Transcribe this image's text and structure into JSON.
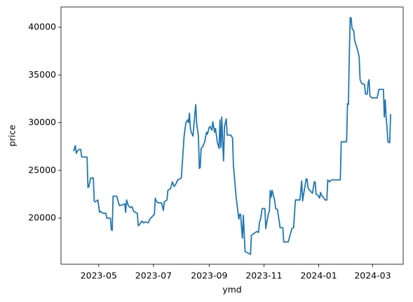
{
  "chart_data": {
    "type": "line",
    "x_label": "ymd",
    "y_label": "price",
    "x": [
      19450,
      19452,
      19453,
      19454,
      19456,
      19458,
      19459,
      19465,
      19466,
      19467,
      19469,
      19472,
      19473,
      19474,
      19477,
      19479,
      19480,
      19483,
      19486,
      19487,
      19491,
      19492,
      19493,
      19494,
      19498,
      19501,
      19505,
      19507,
      19508,
      19509,
      19511,
      19513,
      19515,
      19517,
      19519,
      19521,
      19522,
      19524,
      19526,
      19528,
      19530,
      19533,
      19535,
      19538,
      19540,
      19541,
      19542,
      19544,
      19548,
      19550,
      19551,
      19554,
      19555,
      19558,
      19560,
      19562,
      19564,
      19566,
      19570,
      19573,
      19575,
      19577,
      19578,
      19579,
      19580,
      19581,
      19583,
      19584,
      19586,
      19587,
      19589,
      19590,
      19591,
      19592,
      19594,
      19596,
      19598,
      19599,
      19601,
      19602,
      19604,
      19605,
      19607,
      19608,
      19610,
      19612,
      19613,
      19614,
      19615,
      19616,
      19617,
      19618,
      19620,
      19621,
      19625,
      19627,
      19628,
      19631,
      19634,
      19635,
      19636,
      19637,
      19638,
      19639,
      19641,
      19643,
      19645,
      19647,
      19648,
      19651,
      19654,
      19656,
      19657,
      19658,
      19660,
      19663,
      19664,
      19665,
      19667,
      19668,
      19669,
      19670,
      19671,
      19673,
      19674,
      19675,
      19677,
      19680,
      19683,
      19684,
      19689,
      19691,
      19693,
      19695,
      19697,
      19699,
      19702,
      19704,
      19705,
      19707,
      19709,
      19710,
      19711,
      19712,
      19715,
      19716,
      19718,
      19719,
      19720,
      19722,
      19724,
      19725,
      19726,
      19728,
      19730,
      19732,
      19733,
      19735,
      19737,
      19747,
      19748,
      19754,
      19755,
      19756,
      19757,
      19758,
      19759,
      19760,
      19762,
      19763,
      19766,
      19768,
      19769,
      19771,
      19774,
      19775,
      19777,
      19778,
      19779,
      19780,
      19782,
      19788,
      19790,
      19795,
      19796,
      19797,
      19798,
      19799,
      19800,
      19802,
      19803
    ],
    "series": [
      {
        "color": "#1f77b4",
        "values": [
          27000,
          27600,
          26800,
          27000,
          27200,
          27200,
          26400,
          26400,
          23200,
          23300,
          24200,
          24200,
          21800,
          21700,
          21900,
          20600,
          20700,
          20500,
          20500,
          20000,
          20000,
          18800,
          18700,
          22300,
          22300,
          21300,
          21400,
          21500,
          20600,
          21900,
          21300,
          21100,
          21200,
          20700,
          20600,
          20500,
          19200,
          19400,
          19700,
          19500,
          19600,
          19500,
          19900,
          20200,
          20400,
          22100,
          21800,
          21600,
          21600,
          20800,
          21700,
          21900,
          22900,
          23100,
          23800,
          23300,
          23600,
          24000,
          24200,
          28500,
          30000,
          30300,
          30000,
          31000,
          29500,
          29000,
          28600,
          29800,
          31900,
          30000,
          28600,
          25200,
          25300,
          27300,
          27500,
          28000,
          29000,
          28800,
          29500,
          29600,
          29200,
          30100,
          29000,
          29400,
          28000,
          27300,
          30300,
          27400,
          30600,
          28000,
          26000,
          29600,
          30400,
          28700,
          28700,
          28400,
          25500,
          22200,
          19900,
          20400,
          20400,
          19000,
          17900,
          20300,
          16500,
          16400,
          16300,
          16200,
          18200,
          18400,
          18600,
          18500,
          19600,
          19800,
          21000,
          21000,
          18900,
          19500,
          20500,
          20700,
          22900,
          22200,
          22900,
          22200,
          21800,
          21000,
          20900,
          19000,
          19000,
          17500,
          17500,
          18200,
          18900,
          19000,
          21900,
          21900,
          21900,
          23900,
          21800,
          23000,
          24100,
          24100,
          23200,
          23000,
          22700,
          22600,
          23800,
          23800,
          22500,
          22400,
          22100,
          22700,
          22400,
          22200,
          21900,
          21900,
          24000,
          23800,
          24000,
          24000,
          28000,
          28000,
          32000,
          31900,
          37000,
          41000,
          41000,
          39900,
          39600,
          38600,
          37700,
          36900,
          34500,
          34100,
          34000,
          33000,
          33000,
          34200,
          34500,
          32800,
          32600,
          32600,
          33500,
          33500,
          30600,
          32400,
          30600,
          29500,
          28000,
          27900,
          30900
        ]
      }
    ],
    "xlim": [
      19436,
      19817
    ],
    "xticks": [
      {
        "value": 19478,
        "label": "2023-05"
      },
      {
        "value": 19539,
        "label": "2023-07"
      },
      {
        "value": 19601,
        "label": "2023-09"
      },
      {
        "value": 19662,
        "label": "2023-11"
      },
      {
        "value": 19723,
        "label": "2024-01"
      },
      {
        "value": 19783,
        "label": "2024-03"
      }
    ],
    "ylim": [
      15165,
      42125
    ],
    "yticks": [
      20000,
      25000,
      30000,
      35000,
      40000
    ]
  }
}
